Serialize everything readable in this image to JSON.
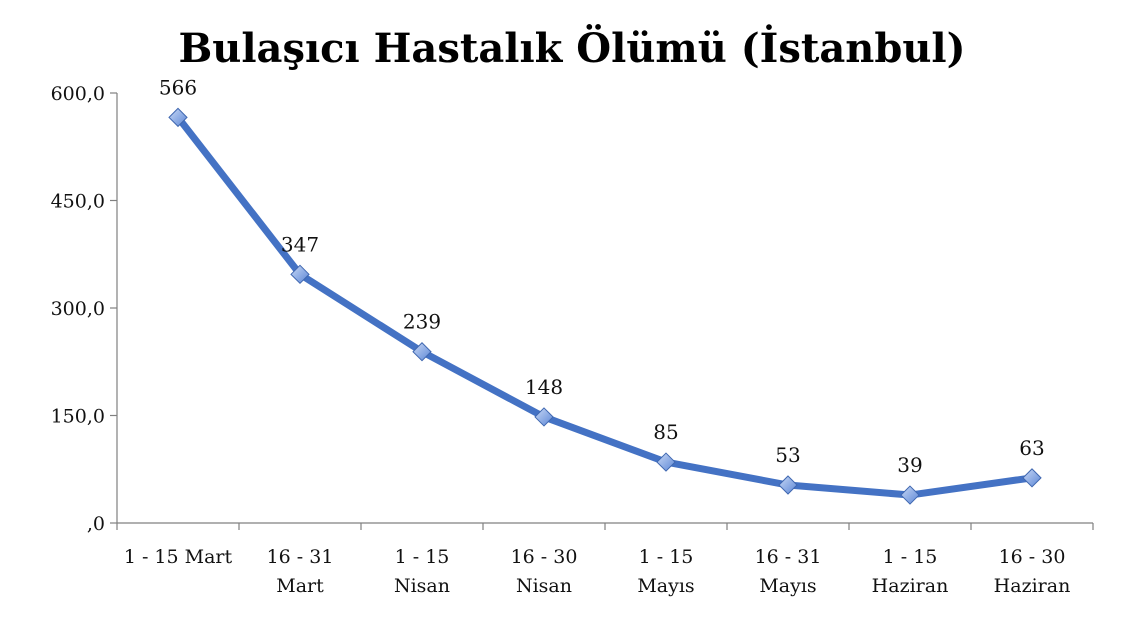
{
  "chart_data": {
    "type": "line",
    "title": "Bulaşıcı Hastalık Ölümü (İstanbul)",
    "xlabel": "",
    "ylabel": "",
    "categories": [
      [
        "1 - 15 Mart"
      ],
      [
        "16 - 31",
        "Mart"
      ],
      [
        "1 - 15",
        "Nisan"
      ],
      [
        "16 - 30",
        "Nisan"
      ],
      [
        "1 - 15",
        "Mayıs"
      ],
      [
        "16 - 31",
        "Mayıs"
      ],
      [
        "1 - 15",
        "Haziran"
      ],
      [
        "16 - 30",
        "Haziran"
      ]
    ],
    "series": [
      {
        "values": [
          566,
          347,
          239,
          148,
          85,
          53,
          39,
          63
        ],
        "color": "#4472C4",
        "marker": "diamond"
      }
    ],
    "data_labels": [
      "566",
      "347",
      "239",
      "148",
      "85",
      "53",
      "39",
      "63"
    ],
    "ylim": [
      0,
      600
    ],
    "yticks": [
      0,
      150,
      300,
      450,
      600
    ],
    "ytick_labels": [
      ",0",
      "150,0",
      "300,0",
      "450,0",
      "600,0"
    ],
    "grid": false,
    "legend": "none"
  }
}
